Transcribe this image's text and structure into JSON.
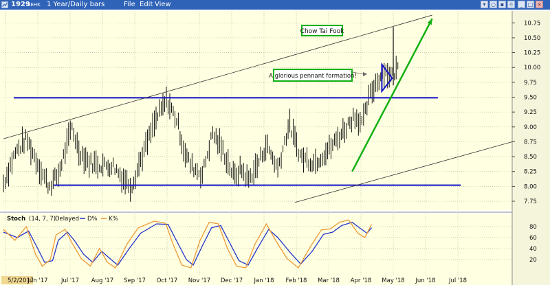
{
  "window": {
    "app_icon": "chart-app-icon",
    "symbol": "1929",
    "exchange": "SEHK",
    "timeframe": "1 Year/Daily bars",
    "menu": [
      "File",
      "Edit",
      "View"
    ],
    "controls": [
      "dropdown-icon",
      "search-icon",
      "lock-icon",
      "settings-icon",
      "minimize-icon",
      "maximize-icon",
      "close-icon"
    ]
  },
  "colors": {
    "plot_background": "#ffffe1",
    "grid": "#bdbdb0",
    "price_bars": "#111111",
    "support_resistance": "#1010c8",
    "channel": "#333333",
    "projection_arrow": "#12b012",
    "label_border": "#10b010",
    "d_line": "#2233cc",
    "k_line": "#ee9933"
  },
  "chart_data": [
    {
      "type": "ohlc",
      "title": "",
      "y_ticks": [
        "10.75",
        "10.50",
        "10.25",
        "10.00",
        "9.75",
        "9.50",
        "9.25",
        "9.00",
        "8.75",
        "8.50",
        "8.25",
        "8.00",
        "7.75"
      ],
      "ylim": [
        7.6,
        10.95
      ],
      "x_ticks": [
        "5/2/2017",
        "Jun '17",
        "Jul '17",
        "Aug '17",
        "Sep '17",
        "Oct '17",
        "Nov '17",
        "Dec '17",
        "Jan '18",
        "Feb '18",
        "Mar '18",
        "Apr '18",
        "May '18",
        "Jun '18",
        "Jul '18"
      ],
      "xlim_days": [
        0,
        445
      ],
      "grid": true,
      "close_series": {
        "x_days": [
          0,
          10,
          20,
          32,
          40,
          48,
          60,
          66,
          75,
          88,
          96,
          104,
          112,
          120,
          134,
          143,
          152,
          158,
          164,
          174,
          183,
          192,
          202,
          208,
          214,
          222,
          230,
          240,
          250,
          260,
          272,
          286,
          298,
          307,
          314,
          320,
          326,
          333,
          340,
          345
        ],
        "y": [
          8.05,
          8.55,
          8.8,
          8.3,
          8.0,
          8.2,
          9.0,
          8.6,
          8.4,
          8.35,
          8.35,
          8.15,
          8.0,
          8.45,
          9.15,
          9.45,
          9.1,
          8.6,
          8.35,
          8.2,
          8.9,
          8.6,
          8.15,
          8.3,
          8.1,
          8.35,
          8.7,
          8.3,
          9.05,
          8.5,
          8.4,
          8.65,
          8.95,
          9.2,
          9.05,
          9.5,
          9.75,
          9.95,
          9.85,
          10.0
        ]
      },
      "spike": {
        "x_day": 341,
        "high": 10.68,
        "low": 9.7
      },
      "lines": [
        {
          "name": "resistance",
          "from": [
            9,
            9.49
          ],
          "to": [
            380,
            9.49
          ]
        },
        {
          "name": "support",
          "from": [
            44,
            8.02
          ],
          "to": [
            400,
            8.02
          ]
        },
        {
          "name": "channel-top",
          "from": [
            0,
            8.8
          ],
          "to": [
            375,
            10.88
          ]
        },
        {
          "name": "channel-bottom",
          "from": [
            255,
            7.73
          ],
          "to": [
            445,
            8.75
          ]
        },
        {
          "name": "projection",
          "from": [
            305,
            8.25
          ],
          "to": [
            375,
            10.82
          ]
        }
      ],
      "annotations": [
        "Chow Tai Fook",
        "A glorious pennant formation!"
      ]
    },
    {
      "type": "line",
      "title": "Stoch",
      "params": "(14, 7, 7)",
      "mode": "Delayed",
      "legend": [
        "D%",
        "K%"
      ],
      "y_ticks": [
        "80",
        "60",
        "40",
        "20"
      ],
      "ylim": [
        0,
        100
      ],
      "series": [
        {
          "name": "D%",
          "x_days": [
            0,
            12,
            22,
            30,
            36,
            43,
            48,
            56,
            62,
            70,
            78,
            86,
            93,
            100,
            110,
            120,
            134,
            144,
            150,
            160,
            166,
            174,
            182,
            190,
            198,
            206,
            214,
            222,
            232,
            240,
            252,
            260,
            270,
            280,
            288,
            296,
            305,
            310,
            318,
            322
          ],
          "values": [
            70,
            60,
            72,
            40,
            15,
            18,
            55,
            70,
            55,
            30,
            15,
            35,
            22,
            10,
            40,
            68,
            85,
            84,
            60,
            20,
            10,
            45,
            78,
            82,
            50,
            18,
            10,
            40,
            75,
            60,
            30,
            12,
            35,
            66,
            70,
            82,
            88,
            80,
            68,
            78
          ]
        },
        {
          "name": "K%",
          "x_days": [
            0,
            10,
            20,
            28,
            34,
            41,
            46,
            54,
            60,
            68,
            76,
            84,
            91,
            98,
            108,
            118,
            132,
            142,
            148,
            156,
            164,
            172,
            180,
            188,
            196,
            204,
            212,
            220,
            230,
            238,
            248,
            258,
            268,
            278,
            286,
            294,
            302,
            310,
            316,
            322
          ],
          "values": [
            75,
            55,
            80,
            30,
            8,
            20,
            65,
            75,
            50,
            22,
            8,
            40,
            15,
            5,
            48,
            78,
            90,
            86,
            50,
            10,
            5,
            55,
            88,
            85,
            40,
            8,
            5,
            48,
            85,
            55,
            22,
            5,
            42,
            74,
            76,
            88,
            92,
            68,
            60,
            84
          ]
        }
      ]
    }
  ]
}
